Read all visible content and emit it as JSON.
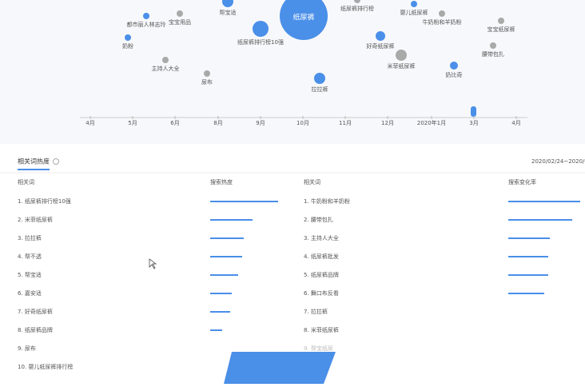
{
  "bubbles": [
    {
      "label": "纸尿裤",
      "size": 30,
      "color": "#4a8fe8"
    },
    {
      "label": "帮宝适",
      "size": 7,
      "color": "#4a8fe8"
    },
    {
      "label": "纸尿裤排行榜",
      "size": 4,
      "color": "#a9a9a9"
    },
    {
      "label": "婴儿纸尿裤",
      "size": 4,
      "color": "#4a8fe8"
    },
    {
      "label": "牛奶粉和羊奶粉",
      "size": 4,
      "color": "#a9a9a9"
    },
    {
      "label": "宝宝纸尿裤",
      "size": 4,
      "color": "#a9a9a9"
    },
    {
      "label": "都市丽人林志玲",
      "size": 4,
      "color": "#4a8fe8"
    },
    {
      "label": "宝宝用品",
      "size": 4,
      "color": "#a9a9a9"
    },
    {
      "label": "纸尿裤排行榜10强",
      "size": 10,
      "color": "#4a8fe8"
    },
    {
      "label": "好奇纸尿裤",
      "size": 6,
      "color": "#4a8fe8"
    },
    {
      "label": "米菲纸尿裤",
      "size": 7,
      "color": "#a9a9a9"
    },
    {
      "label": "腰带包扎",
      "size": 4,
      "color": "#a9a9a9"
    },
    {
      "label": "奶粉",
      "size": 4,
      "color": "#4a8fe8"
    },
    {
      "label": "主持人大全",
      "size": 4,
      "color": "#a9a9a9"
    },
    {
      "label": "尿布",
      "size": 4,
      "color": "#a9a9a9"
    },
    {
      "label": "拉拉裤",
      "size": 7,
      "color": "#4a8fe8"
    },
    {
      "label": "奶比奇",
      "size": 5,
      "color": "#4a8fe8"
    }
  ],
  "timeline": [
    "4月",
    "5月",
    "6月",
    "8月",
    "9月",
    "10月",
    "11月",
    "12月",
    "2020年1月",
    "3月",
    "4月"
  ],
  "section": {
    "title": "相关词热度",
    "date": "2020/02/24~2020/0"
  },
  "left_table": {
    "headers": [
      "相关词",
      "搜索热度"
    ],
    "rows": [
      "1.  纸尿裤排行榜10强",
      "2.  米菲纸尿裤",
      "3.  拉拉裤",
      "4.  帮不透",
      "5.  帮宝适",
      "6.  嘉安适",
      "7.  好奇纸尿裤",
      "8.  纸尿裤品牌",
      "9.  尿布",
      "10. 婴儿纸尿裤排行榜"
    ],
    "values": [
      85,
      53,
      42,
      40,
      35,
      27,
      25,
      15,
      null,
      null
    ]
  },
  "right_table": {
    "headers": [
      "相关词",
      "搜索变化率"
    ],
    "rows": [
      "1.  牛奶粉和羊奶粉",
      "2.  腰带包扎",
      "3.  主持人大全",
      "4.  纸尿裤批发",
      "5.  纸尿裤品牌",
      "6.  舞口布反看",
      "7.  拉拉裤",
      "8.  米菲纸尿裤",
      "9.  帮宝纸尿"
    ],
    "values": [
      90,
      80,
      52,
      50,
      50,
      45,
      null,
      null,
      null
    ]
  }
}
